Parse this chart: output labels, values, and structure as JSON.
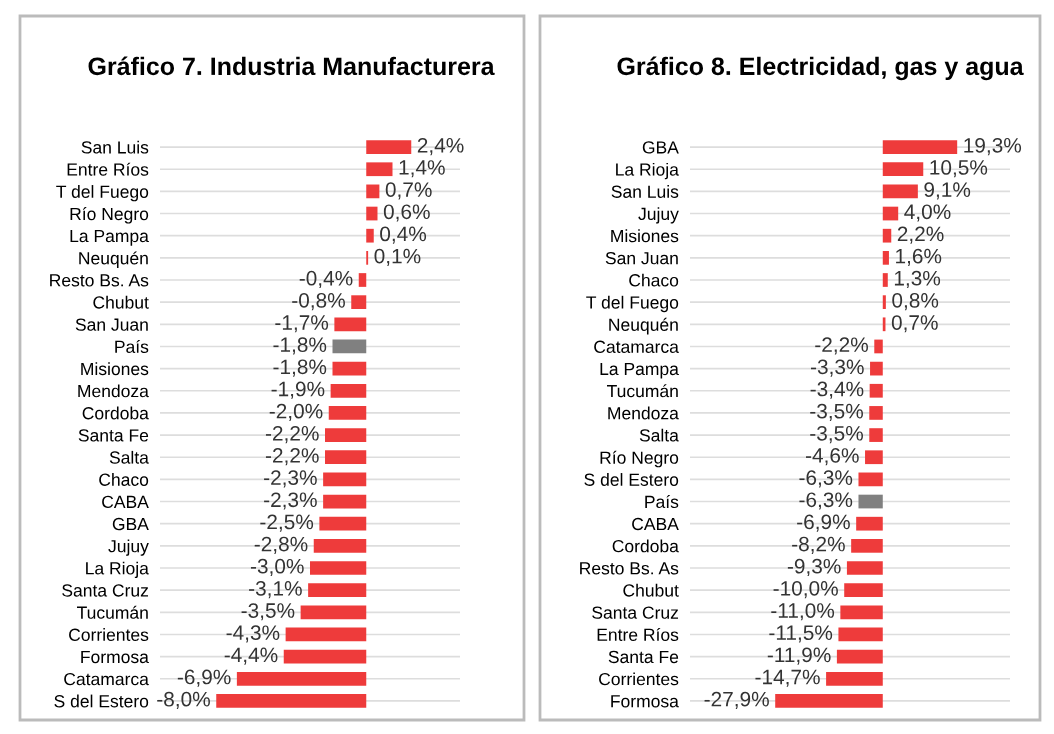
{
  "chart_data": [
    {
      "type": "bar",
      "orientation": "horizontal",
      "title": "Gráfico 7. Industria Manufacturera",
      "categories": [
        "San Luis",
        "Entre Ríos",
        "T del Fuego",
        "Río Negro",
        "La Pampa",
        "Neuquén",
        "Resto Bs. As",
        "Chubut",
        "San Juan",
        "País",
        "Misiones",
        "Mendoza",
        "Cordoba",
        "Santa Fe",
        "Salta",
        "Chaco",
        "CABA",
        "GBA",
        "Jujuy",
        "La Rioja",
        "Santa Cruz",
        "Tucumán",
        "Corrientes",
        "Formosa",
        "Catamarca",
        "S del Estero"
      ],
      "values": [
        2.4,
        1.4,
        0.7,
        0.6,
        0.4,
        0.1,
        -0.4,
        -0.8,
        -1.7,
        -1.8,
        -1.8,
        -1.9,
        -2.0,
        -2.2,
        -2.2,
        -2.3,
        -2.3,
        -2.5,
        -2.8,
        -3.0,
        -3.1,
        -3.5,
        -4.3,
        -4.4,
        -6.9,
        -8.0
      ],
      "value_labels": [
        "2,4%",
        "1,4%",
        "0,7%",
        "0,6%",
        "0,4%",
        "0,1%",
        "-0,4%",
        "-0,8%",
        "-1,7%",
        "-1,8%",
        "-1,8%",
        "-1,9%",
        "-2,0%",
        "-2,2%",
        "-2,2%",
        "-2,3%",
        "-2,3%",
        "-2,5%",
        "-2,8%",
        "-3,0%",
        "-3,1%",
        "-3,5%",
        "-4,3%",
        "-4,4%",
        "-6,9%",
        "-8,0%"
      ],
      "colors": [
        "#ee3b3b",
        "#ee3b3b",
        "#ee3b3b",
        "#ee3b3b",
        "#ee3b3b",
        "#ee3b3b",
        "#ee3b3b",
        "#ee3b3b",
        "#ee3b3b",
        "#808080",
        "#ee3b3b",
        "#ee3b3b",
        "#ee3b3b",
        "#ee3b3b",
        "#ee3b3b",
        "#ee3b3b",
        "#ee3b3b",
        "#ee3b3b",
        "#ee3b3b",
        "#ee3b3b",
        "#ee3b3b",
        "#ee3b3b",
        "#ee3b3b",
        "#ee3b3b",
        "#ee3b3b",
        "#ee3b3b"
      ],
      "xlim": [
        -11,
        5
      ],
      "tick_labels": "y",
      "grid": "y"
    },
    {
      "type": "bar",
      "orientation": "horizontal",
      "title": "Gráfico 8. Electricidad, gas y agua",
      "categories": [
        "GBA",
        "La Rioja",
        "San Luis",
        "Jujuy",
        "Misiones",
        "San Juan",
        "Chaco",
        "T del Fuego",
        "Neuquén",
        "Catamarca",
        "La Pampa",
        "Tucumán",
        "Mendoza",
        "Salta",
        "Río Negro",
        "S del Estero",
        "País",
        "CABA",
        "Cordoba",
        "Resto Bs. As",
        "Chubut",
        "Santa Cruz",
        "Entre Ríos",
        "Santa Fe",
        "Corrientes",
        "Formosa"
      ],
      "values": [
        19.3,
        10.5,
        9.1,
        4.0,
        2.2,
        1.6,
        1.3,
        0.8,
        0.7,
        -2.2,
        -3.3,
        -3.4,
        -3.5,
        -3.5,
        -4.6,
        -6.3,
        -6.3,
        -6.9,
        -8.2,
        -9.3,
        -10.0,
        -11.0,
        -11.5,
        -11.9,
        -14.7,
        -27.9
      ],
      "value_labels": [
        "19,3%",
        "10,5%",
        "9,1%",
        "4,0%",
        "2,2%",
        "1,6%",
        "1,3%",
        "0,8%",
        "0,7%",
        "-2,2%",
        "-3,3%",
        "-3,4%",
        "-3,5%",
        "-3,5%",
        "-4,6%",
        "-6,3%",
        "-6,3%",
        "-6,9%",
        "-8,2%",
        "-9,3%",
        "-10,0%",
        "-11,0%",
        "-11,5%",
        "-11,9%",
        "-14,7%",
        "-27,9%"
      ],
      "colors": [
        "#ee3b3b",
        "#ee3b3b",
        "#ee3b3b",
        "#ee3b3b",
        "#ee3b3b",
        "#ee3b3b",
        "#ee3b3b",
        "#ee3b3b",
        "#ee3b3b",
        "#ee3b3b",
        "#ee3b3b",
        "#ee3b3b",
        "#ee3b3b",
        "#ee3b3b",
        "#ee3b3b",
        "#ee3b3b",
        "#808080",
        "#ee3b3b",
        "#ee3b3b",
        "#ee3b3b",
        "#ee3b3b",
        "#ee3b3b",
        "#ee3b3b",
        "#ee3b3b",
        "#ee3b3b",
        "#ee3b3b"
      ],
      "xlim": [
        -50,
        33
      ],
      "tick_labels": "y",
      "grid": "y"
    }
  ]
}
